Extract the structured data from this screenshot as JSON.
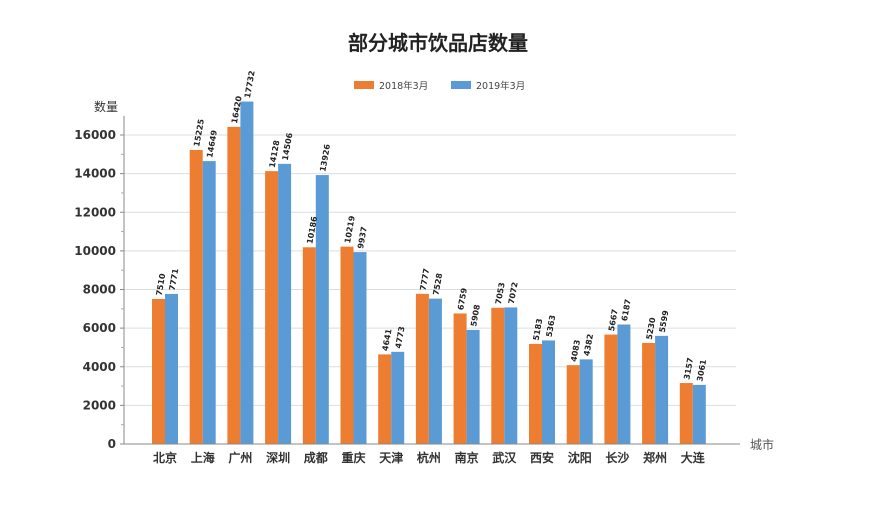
{
  "chart_data": {
    "type": "bar",
    "title": "部分城市饮品店数量",
    "ylabel": "数量",
    "xlabel": "城市",
    "ylim": [
      0,
      17000
    ],
    "yticks": [
      0,
      2000,
      4000,
      6000,
      8000,
      10000,
      12000,
      14000,
      16000
    ],
    "grid": true,
    "legend_position": "top-center",
    "categories": [
      "北京",
      "上海",
      "广州",
      "深圳",
      "成都",
      "重庆",
      "天津",
      "杭州",
      "南京",
      "武汉",
      "西安",
      "沈阳",
      "长沙",
      "郑州",
      "大连"
    ],
    "series": [
      {
        "name": "2018年3月",
        "color": "#ED7D31",
        "values": [
          7510,
          15225,
          16420,
          14128,
          10186,
          10219,
          4641,
          7777,
          6759,
          7053,
          5183,
          4083,
          5667,
          5230,
          3157
        ],
        "labels": [
          "7510",
          "15225",
          "16420",
          "14128",
          "10186",
          "10219",
          "4641",
          "7777",
          "6759",
          "7053",
          "5183",
          "4083",
          "5667",
          "5230",
          "3157"
        ]
      },
      {
        "name": "2019年3月",
        "color": "#5B9BD5",
        "values": [
          7771,
          14649,
          17732,
          14506,
          13926,
          9937,
          4773,
          7528,
          5908,
          7072,
          5363,
          4382,
          6187,
          5599,
          3061
        ],
        "labels": [
          "7771",
          "14649",
          "17732",
          "14506",
          "13926",
          "9937",
          "4773",
          "7528",
          "5908",
          "7072",
          "5363",
          "4382",
          "6187",
          "5599",
          "3061"
        ]
      }
    ]
  }
}
